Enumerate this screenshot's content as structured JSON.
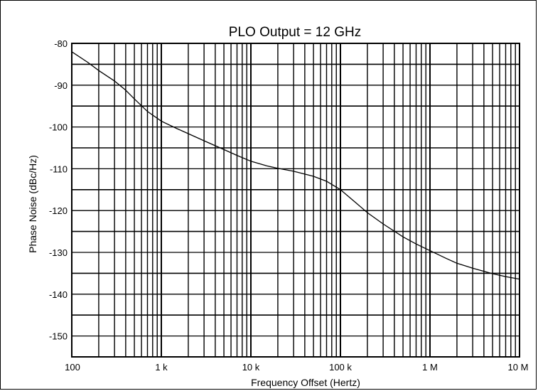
{
  "chart_data": {
    "type": "line",
    "title": "PLO Output = 12 GHz",
    "xlabel": "Frequency Offset (Hertz)",
    "ylabel": "Phase Noise (dBc/Hz)",
    "x_scale": "log",
    "xlim": [
      100,
      10000000
    ],
    "ylim": [
      -155,
      -80
    ],
    "grid": true,
    "x_tick_values": [
      100,
      1000,
      10000,
      100000,
      1000000,
      10000000
    ],
    "x_tick_labels": [
      "100",
      "1 k",
      "10 k",
      "100 k",
      "1 M",
      "10 M"
    ],
    "y_tick_values": [
      -80,
      -90,
      -100,
      -110,
      -120,
      -130,
      -140,
      -150
    ],
    "y_tick_labels": [
      "-80",
      "-90",
      "-100",
      "-110",
      "-120",
      "-130",
      "-140",
      "-150"
    ],
    "series": [
      {
        "x": [
          100,
          150,
          200,
          300,
          400,
          500,
          700,
          1000,
          1500,
          2000,
          3000,
          5000,
          7000,
          10000,
          15000,
          20000,
          30000,
          50000,
          70000,
          100000,
          150000,
          200000,
          300000,
          500000,
          700000,
          1000000,
          1500000,
          2000000,
          3000000,
          5000000,
          7000000,
          10000000
        ],
        "y": [
          -82,
          -84.5,
          -86.5,
          -89,
          -91.2,
          -93.3,
          -96.3,
          -98.6,
          -100.4,
          -101.6,
          -103.3,
          -105.4,
          -106.8,
          -108.2,
          -109.3,
          -109.9,
          -110.6,
          -111.8,
          -113,
          -115,
          -118.2,
          -120.5,
          -123.2,
          -126.3,
          -128,
          -129.6,
          -131.4,
          -132.6,
          -133.8,
          -135.1,
          -135.8,
          -136.4
        ]
      }
    ]
  }
}
